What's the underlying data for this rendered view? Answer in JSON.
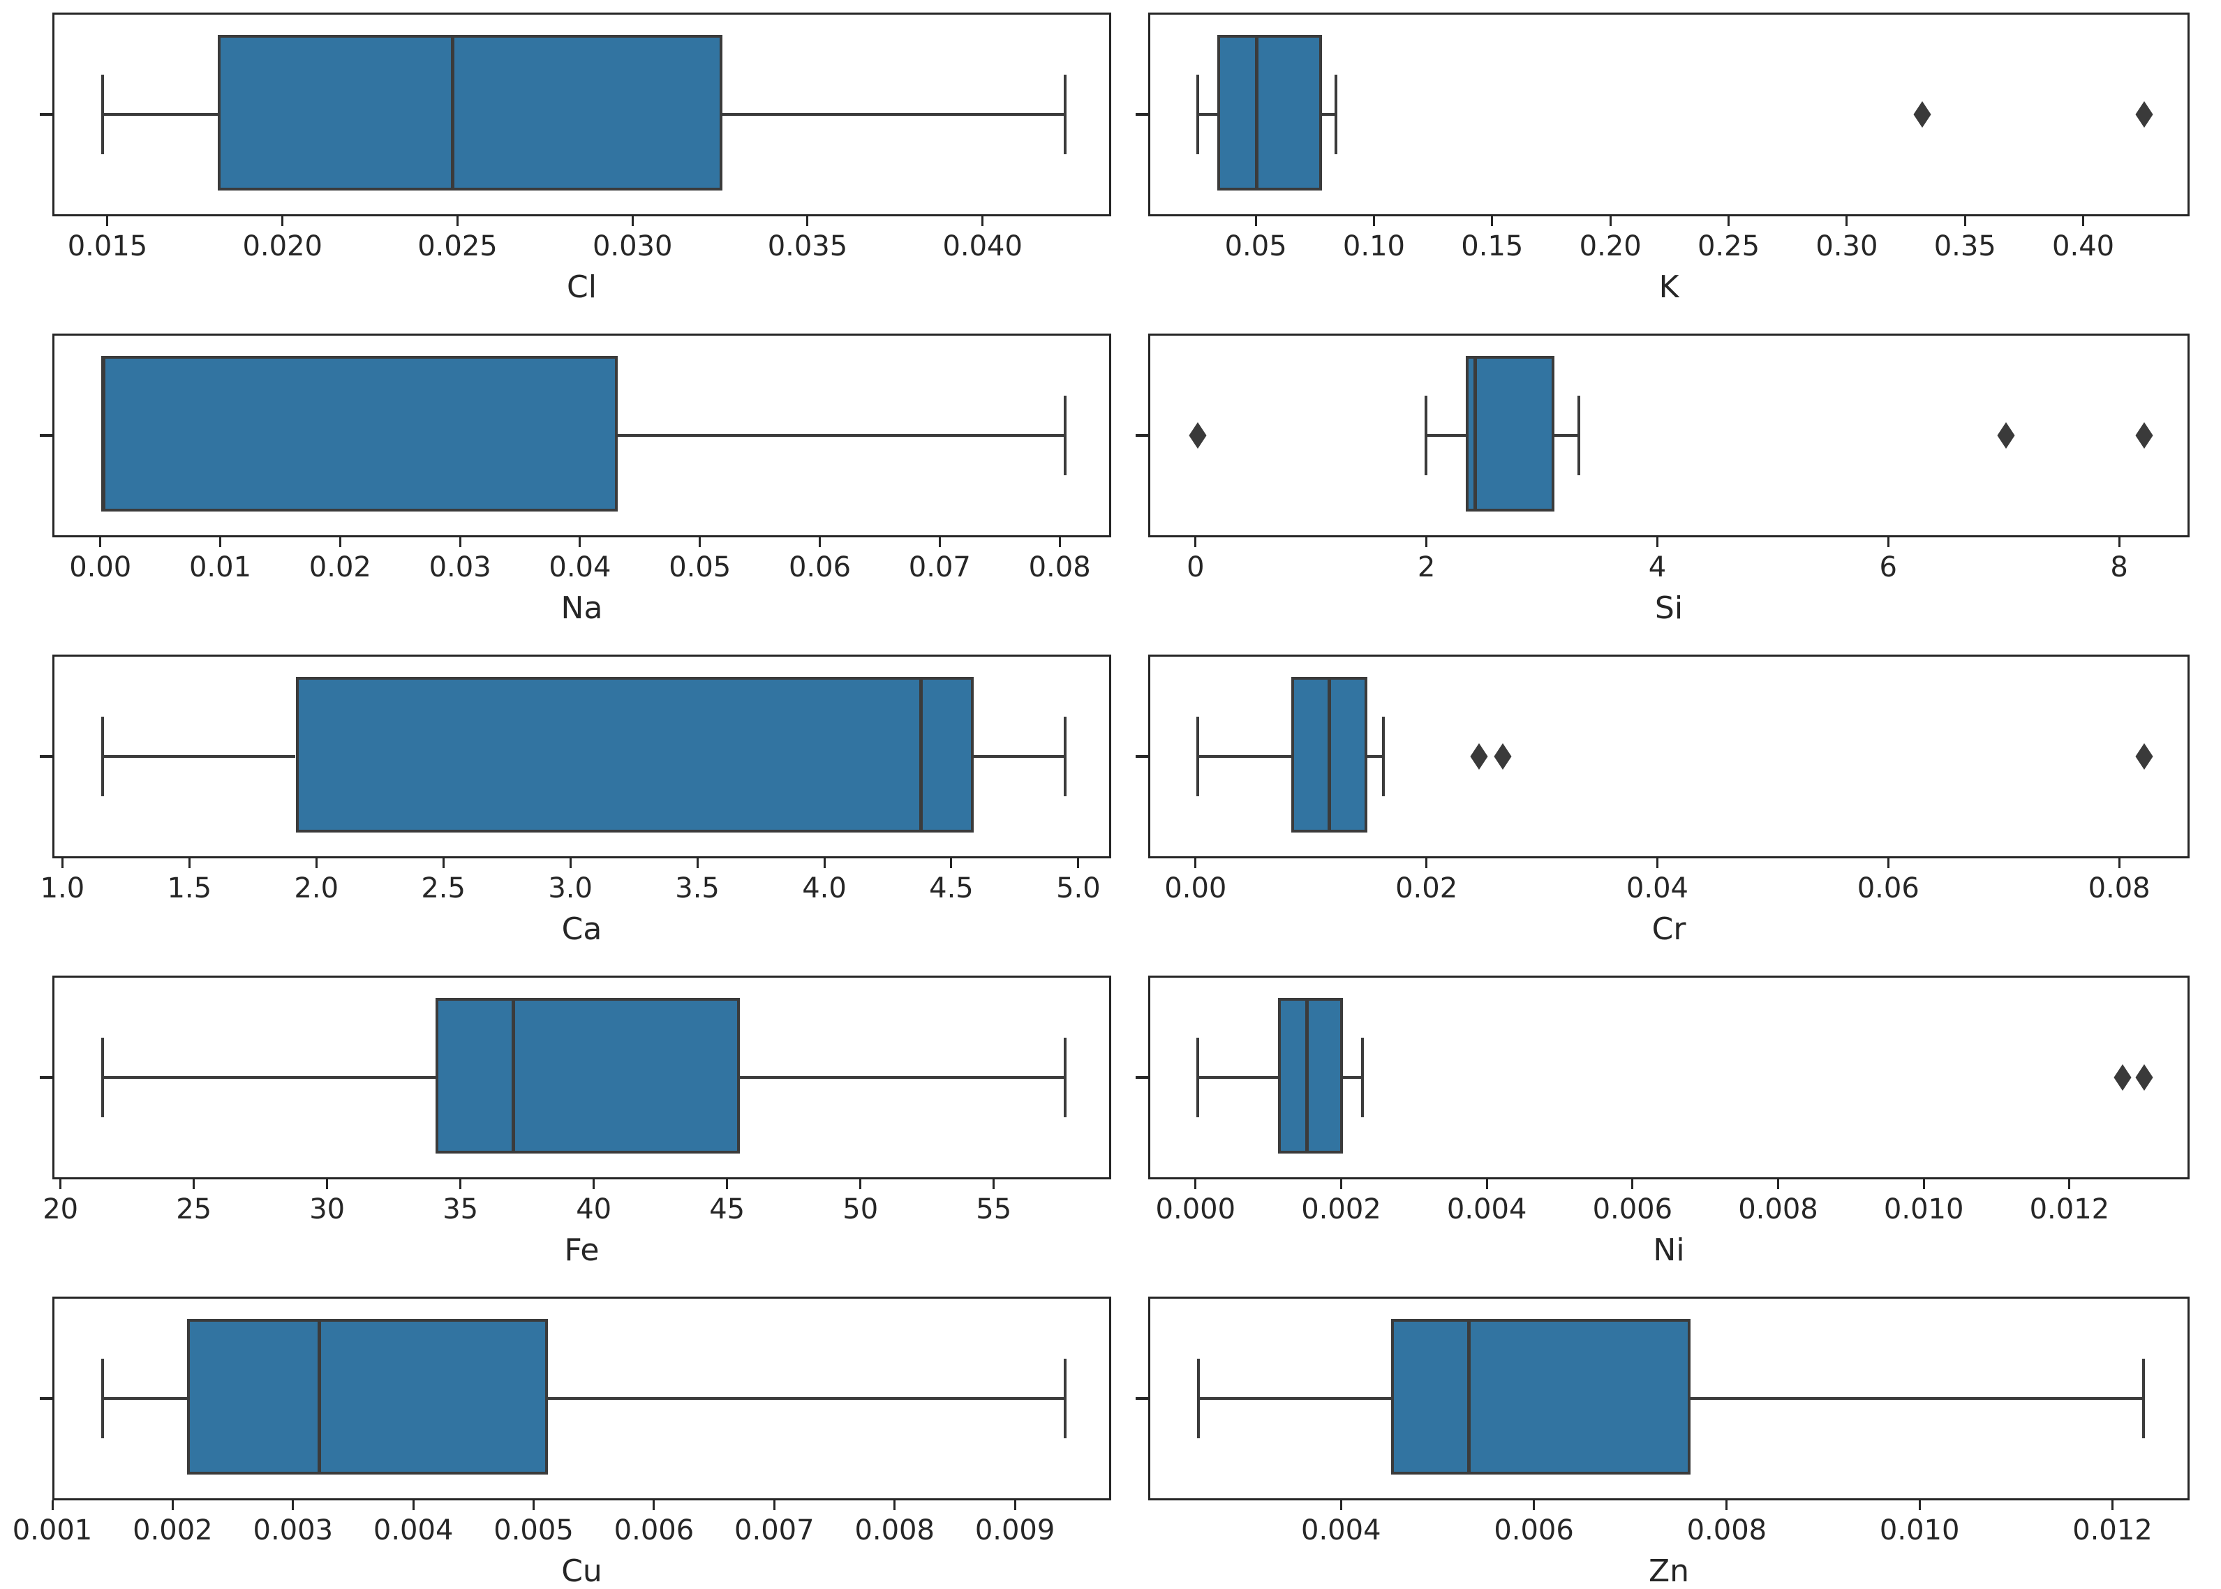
{
  "figure": {
    "description": "Grid of horizontal box plots showing concentration distributions of chemical elements",
    "rows": 5,
    "cols": 2,
    "background": "#ffffff"
  },
  "colors": {
    "box_fill": "#3274a1",
    "box_edge": "#3b3b3b",
    "whisker": "#3b3b3b",
    "median": "#3b3b3b",
    "outlier": "#3a3a3a",
    "axis_frame": "#262626",
    "tick_text": "#262626"
  },
  "chart_data": [
    {
      "type": "boxplot",
      "orientation": "horizontal",
      "xlabel": "Cl",
      "xtick_values": [
        0.015,
        0.02,
        0.025,
        0.03,
        0.035,
        0.04
      ],
      "xtick_labels": [
        "0.015",
        "0.020",
        "0.025",
        "0.030",
        "0.035",
        "0.040"
      ],
      "xlim": [
        0.013425,
        0.043675
      ],
      "box": {
        "whisker_low": 0.0148,
        "q1": 0.0181,
        "median": 0.0248,
        "q3": 0.0325,
        "whisker_high": 0.0423
      },
      "outliers": []
    },
    {
      "type": "boxplot",
      "orientation": "horizontal",
      "xlabel": "K",
      "xtick_values": [
        0.05,
        0.1,
        0.15,
        0.2,
        0.25,
        0.3,
        0.35,
        0.4
      ],
      "xtick_labels": [
        "0.05",
        "0.10",
        "0.15",
        "0.20",
        "0.25",
        "0.30",
        "0.35",
        "0.40"
      ],
      "xlim": [
        0.0045,
        0.445
      ],
      "box": {
        "whisker_low": 0.0245,
        "q1": 0.0327,
        "median": 0.0495,
        "q3": 0.077,
        "whisker_high": 0.0831
      },
      "outliers": [
        0.331,
        0.425
      ]
    },
    {
      "type": "boxplot",
      "orientation": "horizontal",
      "xlabel": "Na",
      "xtick_values": [
        0.0,
        0.01,
        0.02,
        0.03,
        0.04,
        0.05,
        0.06,
        0.07,
        0.08
      ],
      "xtick_labels": [
        "0.00",
        "0.01",
        "0.02",
        "0.03",
        "0.04",
        "0.05",
        "0.06",
        "0.07",
        "0.08"
      ],
      "xlim": [
        -0.004,
        0.0843
      ],
      "box": {
        "whisker_low": 0.0,
        "q1": 0.0,
        "median": 0.0,
        "q3": 0.043,
        "whisker_high": 0.0803
      },
      "outliers": []
    },
    {
      "type": "boxplot",
      "orientation": "horizontal",
      "xlabel": "Si",
      "xtick_values": [
        0,
        2,
        4,
        6,
        8
      ],
      "xtick_labels": [
        "0",
        "2",
        "4",
        "6",
        "8"
      ],
      "xlim": [
        -0.41,
        8.61
      ],
      "box": {
        "whisker_low": 1.98,
        "q1": 2.32,
        "median": 2.4,
        "q3": 3.09,
        "whisker_high": 3.3
      },
      "outliers": [
        0.0,
        7.0,
        8.2
      ]
    },
    {
      "type": "boxplot",
      "orientation": "horizontal",
      "xlabel": "Ca",
      "xtick_values": [
        1.0,
        1.5,
        2.0,
        2.5,
        3.0,
        3.5,
        4.0,
        4.5,
        5.0
      ],
      "xtick_labels": [
        "1.0",
        "1.5",
        "2.0",
        "2.5",
        "3.0",
        "3.5",
        "4.0",
        "4.5",
        "5.0"
      ],
      "xlim": [
        0.9605,
        5.1295
      ],
      "box": {
        "whisker_low": 1.15,
        "q1": 1.91,
        "median": 4.37,
        "q3": 4.58,
        "whisker_high": 4.94
      },
      "outliers": []
    },
    {
      "type": "boxplot",
      "orientation": "horizontal",
      "xlabel": "Cr",
      "xtick_values": [
        0.0,
        0.02,
        0.04,
        0.06,
        0.08
      ],
      "xtick_labels": [
        "0.00",
        "0.02",
        "0.04",
        "0.06",
        "0.08"
      ],
      "xlim": [
        -0.0041,
        0.0861
      ],
      "box": {
        "whisker_low": 0.0,
        "q1": 0.0081,
        "median": 0.0114,
        "q3": 0.0147,
        "whisker_high": 0.0161
      },
      "outliers": [
        0.0244,
        0.0264,
        0.082
      ]
    },
    {
      "type": "boxplot",
      "orientation": "horizontal",
      "xlabel": "Fe",
      "xtick_values": [
        20,
        25,
        30,
        35,
        40,
        45,
        50,
        55
      ],
      "xtick_labels": [
        "20",
        "25",
        "30",
        "35",
        "40",
        "45",
        "50",
        "55"
      ],
      "xlim": [
        19.695,
        59.405
      ],
      "box": {
        "whisker_low": 21.5,
        "q1": 34.0,
        "median": 36.9,
        "q3": 45.4,
        "whisker_high": 57.6
      },
      "outliers": []
    },
    {
      "type": "boxplot",
      "orientation": "horizontal",
      "xlabel": "Ni",
      "xtick_values": [
        0.0,
        0.002,
        0.004,
        0.006,
        0.008,
        0.01,
        0.012
      ],
      "xtick_labels": [
        "0.000",
        "0.002",
        "0.004",
        "0.006",
        "0.008",
        "0.010",
        "0.012"
      ],
      "xlim": [
        -0.00065,
        0.01365
      ],
      "box": {
        "whisker_low": 0.0,
        "q1": 0.0011,
        "median": 0.0015,
        "q3": 0.002,
        "whisker_high": 0.00226
      },
      "outliers": [
        0.0127,
        0.013
      ]
    },
    {
      "type": "boxplot",
      "orientation": "horizontal",
      "xlabel": "Cu",
      "xtick_values": [
        0.001,
        0.002,
        0.003,
        0.004,
        0.005,
        0.006,
        0.007,
        0.008,
        0.009
      ],
      "xtick_labels": [
        "0.001",
        "0.002",
        "0.003",
        "0.004",
        "0.005",
        "0.006",
        "0.007",
        "0.008",
        "0.009"
      ],
      "xlim": [
        0.001,
        0.0098
      ],
      "box": {
        "whisker_low": 0.0014,
        "q1": 0.0021,
        "median": 0.0032,
        "q3": 0.0051,
        "whisker_high": 0.0094
      },
      "outliers": []
    },
    {
      "type": "boxplot",
      "orientation": "horizontal",
      "xlabel": "Zn",
      "xtick_values": [
        0.004,
        0.006,
        0.008,
        0.01,
        0.012
      ],
      "xtick_labels": [
        "0.004",
        "0.006",
        "0.008",
        "0.010",
        "0.012"
      ],
      "xlim": [
        0.002,
        0.0128
      ],
      "box": {
        "whisker_low": 0.0025,
        "q1": 0.0045,
        "median": 0.0053,
        "q3": 0.0076,
        "whisker_high": 0.0123
      },
      "outliers": []
    }
  ]
}
